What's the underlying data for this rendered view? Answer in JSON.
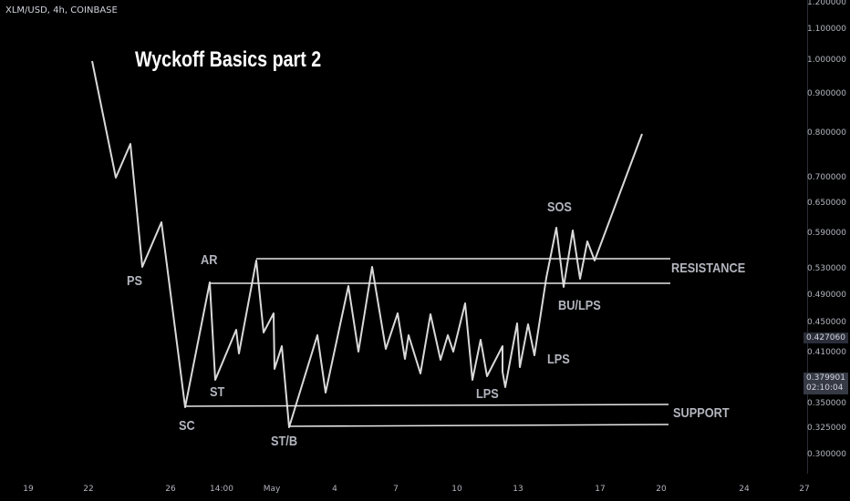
{
  "header": {
    "symbol": "XLM/USD, 4h, COINBASE"
  },
  "title": "Wyckoff Basics part 2",
  "labels": {
    "ps": "PS",
    "sc": "SC",
    "ar": "AR",
    "st": "ST",
    "stb": "ST/B",
    "lps1": "LPS",
    "lps2": "LPS",
    "sos": "SOS",
    "bulps": "BU/LPS",
    "resistance": "RESISTANCE",
    "support": "SUPPORT"
  },
  "y_axis": [
    "1.200000",
    "1.100000",
    "1.000000",
    "0.900000",
    "0.800000",
    "0.700000",
    "0.650000",
    "0.590000",
    "0.530000",
    "0.490000",
    "0.450000",
    "0.410000",
    "0.350000",
    "0.325000",
    "0.300000"
  ],
  "x_axis": [
    "19",
    "22",
    "26",
    "14:00",
    "May",
    "4",
    "7",
    "10",
    "13",
    "17",
    "20",
    "24",
    "27"
  ],
  "price_tags": {
    "current": "0.427060",
    "cursor_price": "0.379901",
    "cursor_time": "02:10:04"
  },
  "colors": {
    "background": "#000000",
    "line": "#d9d9d9",
    "text": "#b2b5be"
  }
}
